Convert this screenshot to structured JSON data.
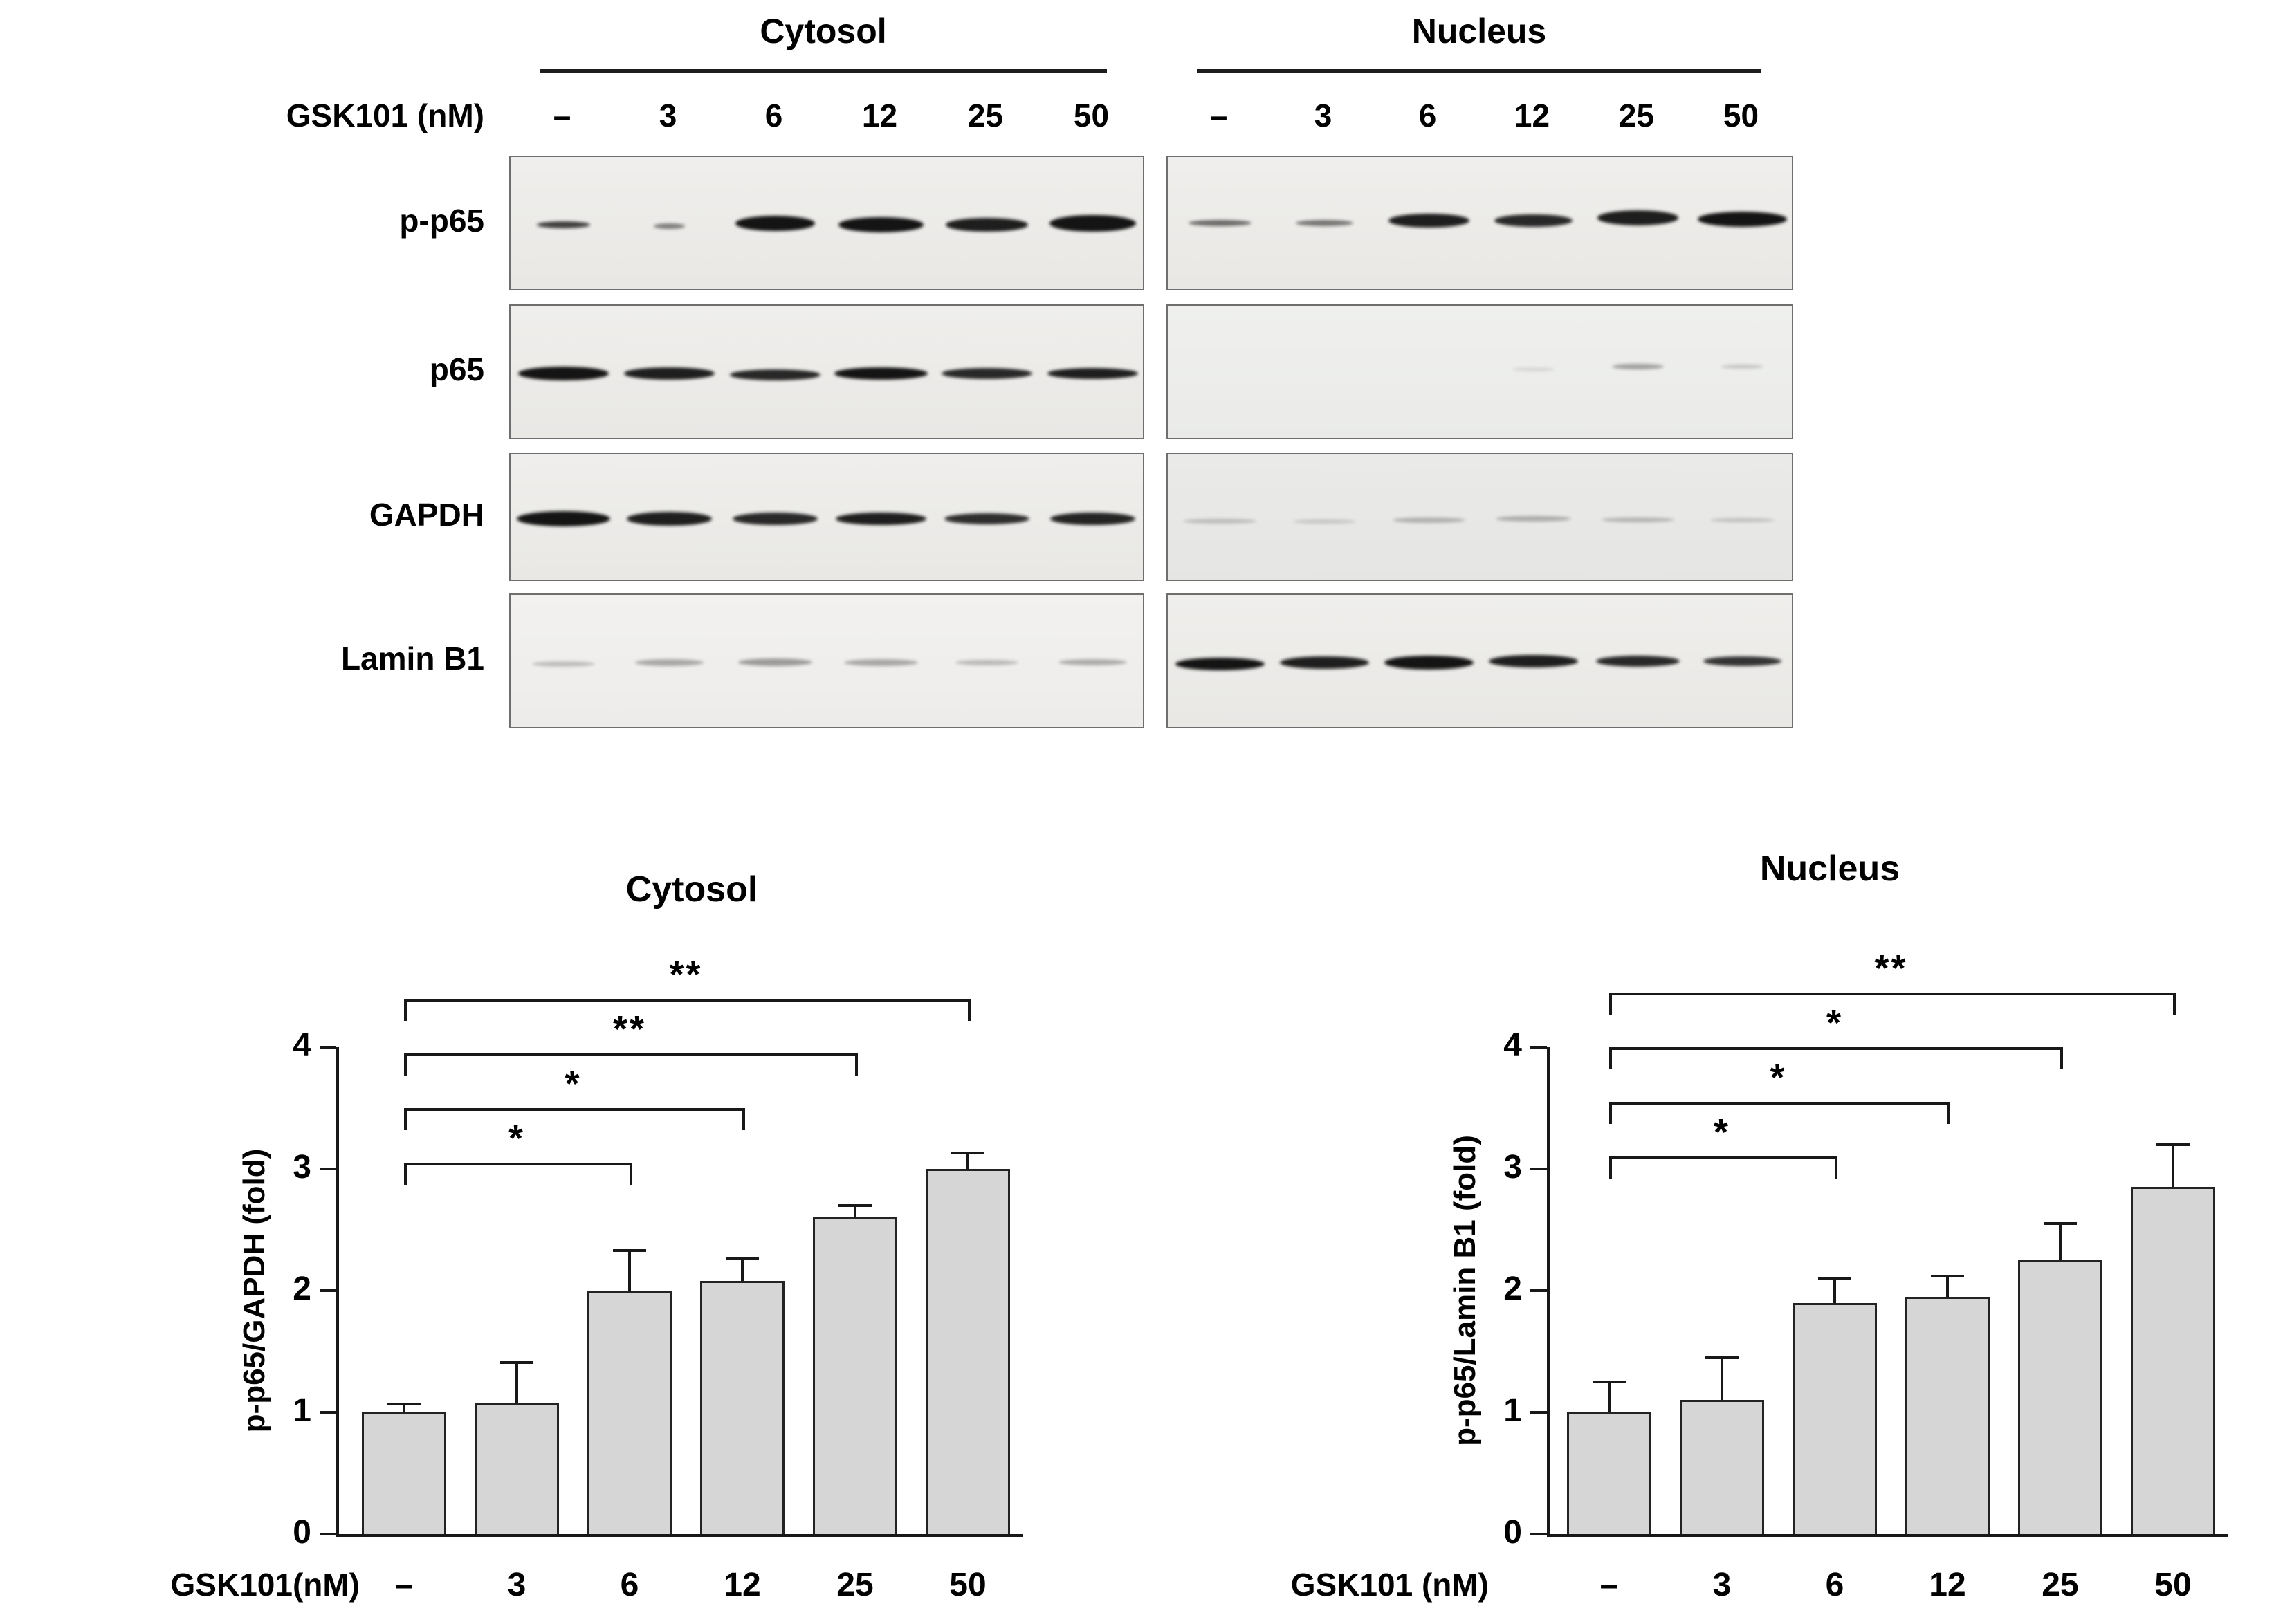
{
  "blots": {
    "dose_label": "GSK101 (nM)",
    "doses": [
      "–",
      "3",
      "6",
      "12",
      "25",
      "50"
    ],
    "groups": [
      {
        "label": "Cytosol"
      },
      {
        "label": "Nucleus"
      }
    ],
    "rows": [
      {
        "label": "p-p65",
        "bands": {
          "cytosol": [
            [
              0.8,
              0.5,
              10,
              0
            ],
            [
              0.5,
              0.3,
              8,
              2
            ],
            [
              1,
              0.75,
              22,
              -2
            ],
            [
              1,
              0.8,
              22,
              0
            ],
            [
              0.95,
              0.78,
              20,
              0
            ],
            [
              1,
              0.82,
              24,
              -2
            ]
          ],
          "nucleus": [
            [
              0.6,
              0.6,
              9,
              -2
            ],
            [
              0.55,
              0.55,
              9,
              -2
            ],
            [
              0.95,
              0.78,
              20,
              -6
            ],
            [
              0.9,
              0.75,
              18,
              -6
            ],
            [
              0.95,
              0.78,
              22,
              -10
            ],
            [
              1,
              0.85,
              22,
              -8
            ]
          ]
        }
      },
      {
        "label": "p65",
        "bands": {
          "cytosol": [
            [
              1,
              0.85,
              20,
              0
            ],
            [
              0.95,
              0.85,
              18,
              0
            ],
            [
              0.9,
              0.85,
              16,
              2
            ],
            [
              1,
              0.88,
              18,
              0
            ],
            [
              0.9,
              0.85,
              16,
              0
            ],
            [
              0.95,
              0.85,
              16,
              0
            ]
          ],
          "nucleus": [
            [
              0,
              0,
              0,
              0
            ],
            [
              0,
              0,
              0,
              0
            ],
            [
              0,
              0,
              0,
              0
            ],
            [
              0.1,
              0.4,
              6,
              -6
            ],
            [
              0.35,
              0.5,
              8,
              -10
            ],
            [
              0.18,
              0.4,
              6,
              -10
            ]
          ]
        }
      },
      {
        "label": "GAPDH",
        "bands": {
          "cytosol": [
            [
              1,
              0.88,
              22,
              0
            ],
            [
              0.95,
              0.8,
              20,
              0
            ],
            [
              0.9,
              0.8,
              18,
              0
            ],
            [
              0.95,
              0.85,
              18,
              0
            ],
            [
              0.88,
              0.8,
              16,
              0
            ],
            [
              0.92,
              0.8,
              18,
              0
            ]
          ],
          "nucleus": [
            [
              0.2,
              0.7,
              7,
              4
            ],
            [
              0.16,
              0.6,
              6,
              4
            ],
            [
              0.25,
              0.7,
              8,
              2
            ],
            [
              0.28,
              0.72,
              8,
              0
            ],
            [
              0.24,
              0.7,
              7,
              2
            ],
            [
              0.18,
              0.62,
              6,
              2
            ]
          ]
        }
      },
      {
        "label": "Lamin B1",
        "bands": {
          "cytosol": [
            [
              0.22,
              0.6,
              8,
              2
            ],
            [
              0.32,
              0.65,
              10,
              0
            ],
            [
              0.38,
              0.7,
              11,
              0
            ],
            [
              0.32,
              0.7,
              10,
              0
            ],
            [
              0.24,
              0.6,
              8,
              0
            ],
            [
              0.3,
              0.65,
              9,
              0
            ]
          ],
          "nucleus": [
            [
              1,
              0.85,
              18,
              2
            ],
            [
              0.95,
              0.85,
              18,
              0
            ],
            [
              1,
              0.85,
              20,
              0
            ],
            [
              0.95,
              0.85,
              18,
              -2
            ],
            [
              0.9,
              0.8,
              16,
              -2
            ],
            [
              0.85,
              0.75,
              14,
              -2
            ]
          ]
        }
      }
    ]
  },
  "chart_data": [
    {
      "type": "bar",
      "title": "Cytosol",
      "categories": [
        "–",
        "3",
        "6",
        "12",
        "25",
        "50"
      ],
      "values": [
        1.0,
        1.08,
        2.0,
        2.08,
        2.6,
        3.0
      ],
      "errors": [
        0.07,
        0.33,
        0.33,
        0.18,
        0.1,
        0.13
      ],
      "xlabel": "GSK101(nM)",
      "ylabel": "p-p65/GAPDH (fold)",
      "ylim": [
        0,
        4
      ],
      "yticks": [
        0,
        1,
        2,
        3,
        4
      ],
      "bar_color": "#d6d6d6",
      "grid": false,
      "significance": [
        {
          "from": 0,
          "to": 2,
          "label": "*",
          "y": 3.05
        },
        {
          "from": 0,
          "to": 3,
          "label": "*",
          "y": 3.5
        },
        {
          "from": 0,
          "to": 4,
          "label": "**",
          "y": 3.95
        },
        {
          "from": 0,
          "to": 5,
          "label": "**",
          "y": 4.4
        }
      ]
    },
    {
      "type": "bar",
      "title": "Nucleus",
      "categories": [
        "–",
        "3",
        "6",
        "12",
        "25",
        "50"
      ],
      "values": [
        1.0,
        1.1,
        1.9,
        1.95,
        2.25,
        2.85
      ],
      "errors": [
        0.25,
        0.35,
        0.2,
        0.17,
        0.3,
        0.35
      ],
      "xlabel": "GSK101 (nM)",
      "ylabel": "p-p65/Lamin B1 (fold)",
      "ylim": [
        0,
        4
      ],
      "yticks": [
        0,
        1,
        2,
        3,
        4
      ],
      "bar_color": "#d6d6d6",
      "grid": false,
      "significance": [
        {
          "from": 0,
          "to": 2,
          "label": "*",
          "y": 3.1
        },
        {
          "from": 0,
          "to": 3,
          "label": "*",
          "y": 3.55
        },
        {
          "from": 0,
          "to": 4,
          "label": "*",
          "y": 4.0
        },
        {
          "from": 0,
          "to": 5,
          "label": "**",
          "y": 4.45
        }
      ]
    }
  ]
}
